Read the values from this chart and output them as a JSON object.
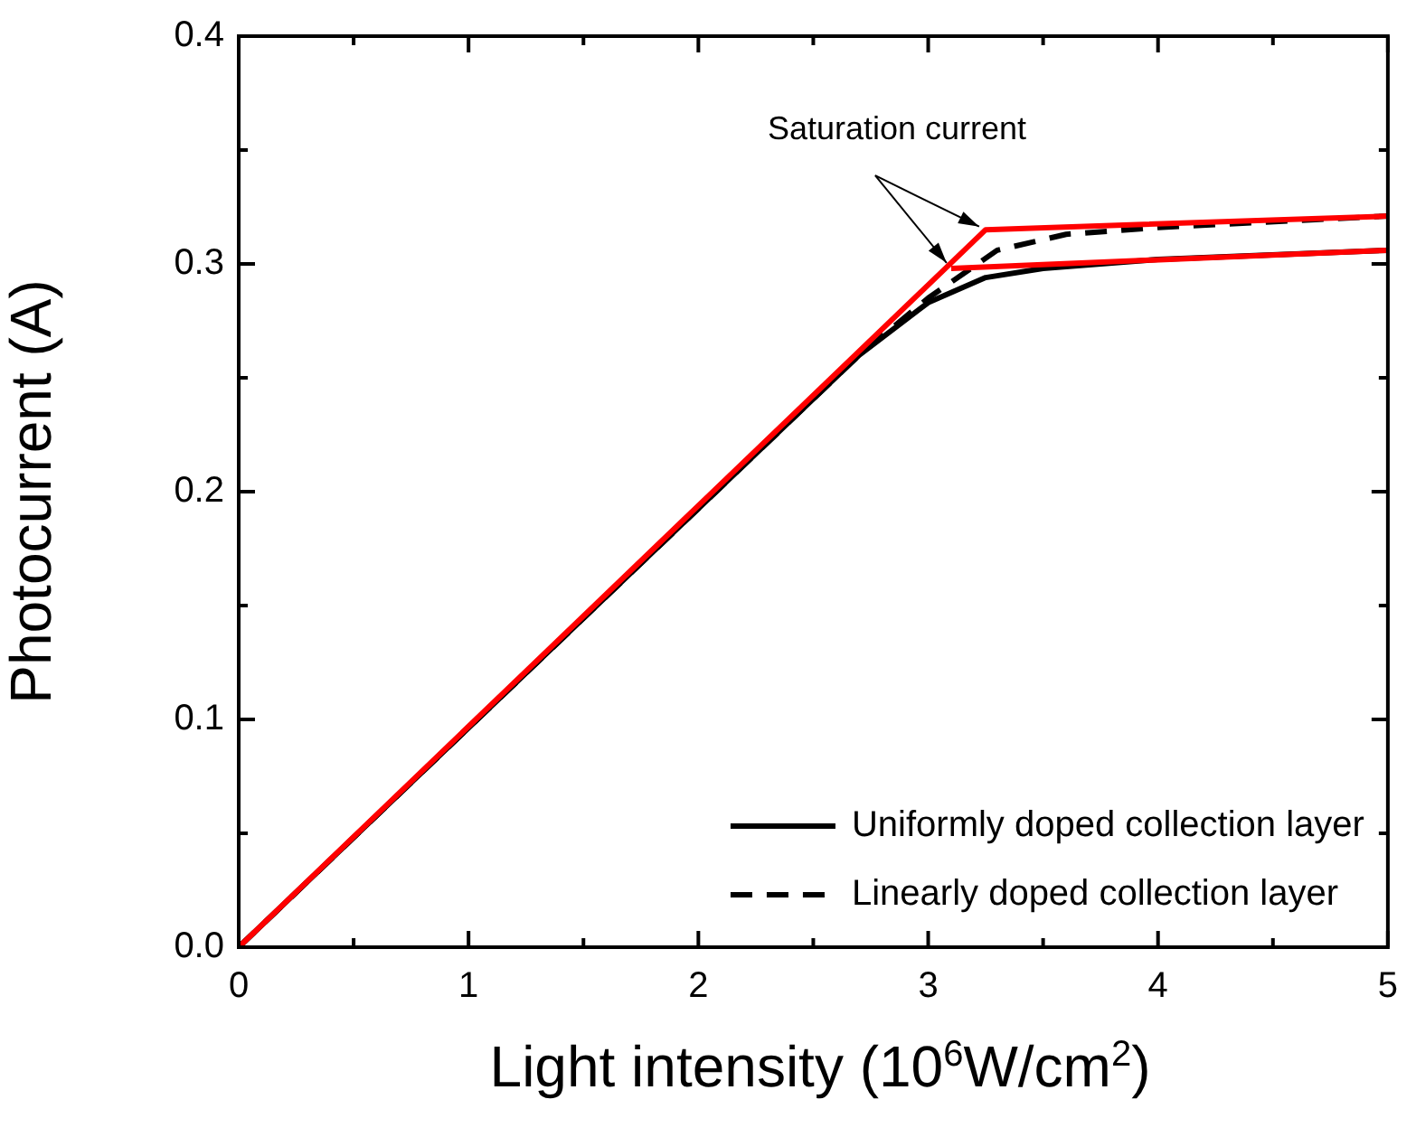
{
  "chart_data": {
    "type": "line",
    "xlabel": "Light intensity (10$^{6}$W/cm$^{2}$)",
    "ylabel": "Photocurrent (A)",
    "annotations": [
      {
        "text": "Saturation current",
        "x": 3.25,
        "y": 0.315
      }
    ],
    "xlim": [
      0,
      5
    ],
    "ylim": [
      0,
      0.4
    ],
    "xticks": [
      0,
      {
        "value": 0.5,
        "label": null
      },
      1,
      {
        "value": 1.5,
        "label": null
      },
      2,
      {
        "value": 2.5,
        "label": null
      },
      3,
      {
        "value": 3.5,
        "label": null
      },
      4,
      {
        "value": 4.5,
        "label": null
      },
      5
    ],
    "yticks": [
      {
        "value": 0,
        "label": "0.0"
      },
      {
        "value": 0.05,
        "label": null
      },
      0.1,
      {
        "value": 0.15,
        "label": null
      },
      0.2,
      {
        "value": 0.25,
        "label": null
      },
      0.3,
      {
        "value": 0.35,
        "label": null
      },
      0.4
    ],
    "grid": false,
    "legend": "bottom right",
    "marker": "none",
    "series": [
      {
        "name": "Uniformly doped collection layer",
        "color": "#000000",
        "line_style": "solid",
        "x": [
          0,
          2.7,
          3.0,
          3.25,
          3.5,
          4,
          5
        ],
        "values": [
          0,
          0.26,
          0.283,
          0.294,
          0.298,
          0.302,
          0.306
        ]
      },
      {
        "name": "Linearly doped collection layer",
        "color": "#000000",
        "line_style": "dashed",
        "x": [
          0,
          2.7,
          3.0,
          3.1,
          3.3,
          3.6,
          4,
          5
        ],
        "values": [
          0,
          0.26,
          0.285,
          0.292,
          0.306,
          0.313,
          0.316,
          0.321
        ]
      },
      {
        "color": "#ff0000",
        "line_style": "solid",
        "x": [
          0,
          3.25,
          5
        ],
        "values": [
          0,
          0.315,
          0.321
        ]
      },
      {
        "color": "#ff0000",
        "line_style": "solid",
        "x": [
          3.1,
          5
        ],
        "values": [
          0.298,
          0.306
        ]
      }
    ]
  }
}
